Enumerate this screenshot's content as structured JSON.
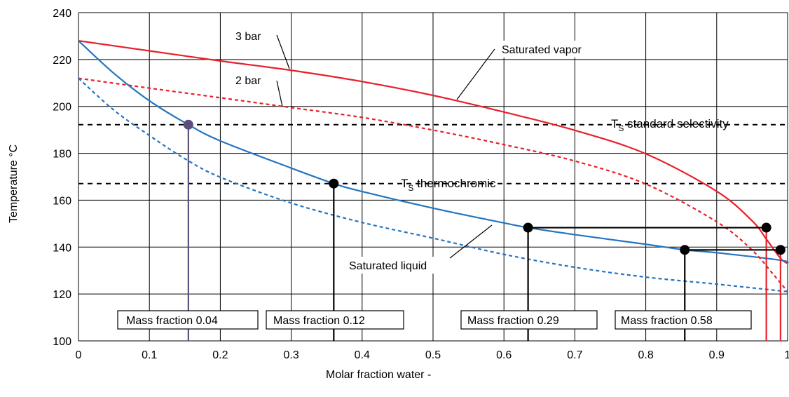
{
  "chart_data": {
    "type": "line",
    "title": "",
    "xlabel": "Molar fraction water   -",
    "ylabel": "Temperature   °C",
    "xlim": [
      0,
      1
    ],
    "ylim": [
      100,
      240
    ],
    "xticks": [
      "0",
      "0.1",
      "0.2",
      "0.3",
      "0.4",
      "0.5",
      "0.6",
      "0.7",
      "0.8",
      "0.9",
      "1"
    ],
    "yticks": [
      "100",
      "120",
      "140",
      "160",
      "180",
      "200",
      "220",
      "240"
    ],
    "grid": true,
    "series": [
      {
        "name": "3 bar saturated vapor",
        "color": "#e8202a",
        "dash": "solid",
        "x": [
          0,
          0.1,
          0.2,
          0.3,
          0.4,
          0.5,
          0.6,
          0.7,
          0.8,
          0.9,
          0.95,
          0.97,
          0.99,
          1.0
        ],
        "y": [
          228,
          223.7,
          219.4,
          215.4,
          210.6,
          204.7,
          197.6,
          189.8,
          179.8,
          163.8,
          151.2,
          143.4,
          135.2,
          133
        ]
      },
      {
        "name": "3 bar saturated liquid",
        "color": "#2475c0",
        "dash": "solid",
        "x": [
          0,
          0.05,
          0.1,
          0.155,
          0.2,
          0.3,
          0.36,
          0.4,
          0.5,
          0.6,
          0.634,
          0.7,
          0.8,
          0.855,
          0.9,
          0.99,
          1.0
        ],
        "y": [
          228,
          214.1,
          202.4,
          192.2,
          185.3,
          173.7,
          167.1,
          163.7,
          156.6,
          150.3,
          148.3,
          145.3,
          141.2,
          138.8,
          137.6,
          134.4,
          133
        ]
      },
      {
        "name": "2 bar saturated vapor",
        "color": "#e8202a",
        "dash": "dashed",
        "x": [
          0,
          0.1,
          0.2,
          0.3,
          0.4,
          0.5,
          0.6,
          0.7,
          0.8,
          0.9,
          0.95,
          0.98,
          1.0
        ],
        "y": [
          212,
          207.8,
          203.7,
          199.5,
          195.3,
          189.9,
          183.7,
          176.7,
          166.9,
          150.8,
          138.7,
          128.3,
          121
        ]
      },
      {
        "name": "2 bar saturated liquid",
        "color": "#2475c0",
        "dash": "dashed",
        "x": [
          0,
          0.05,
          0.1,
          0.15,
          0.2,
          0.3,
          0.4,
          0.5,
          0.6,
          0.7,
          0.8,
          0.9,
          1.0
        ],
        "y": [
          212,
          198.4,
          187.6,
          177.7,
          169.8,
          158.8,
          150.5,
          143.8,
          136.9,
          131.4,
          127.2,
          124.2,
          121
        ]
      }
    ],
    "reference_lines": [
      {
        "label_main": "T",
        "label_sub": "S",
        "label_rest": " standard selectivity",
        "y": 192.2
      },
      {
        "label_main": "T",
        "label_sub": "S",
        "label_rest": " thermochromic",
        "y": 167.1
      }
    ],
    "markers": [
      {
        "x": 0.155,
        "y": 192.2,
        "color": "#5b4e7d"
      },
      {
        "x": 0.36,
        "y": 167.1,
        "color": "#000000"
      },
      {
        "x": 0.634,
        "y": 148.3,
        "color": "#000000"
      },
      {
        "x": 0.97,
        "y": 148.3,
        "color": "#000000"
      },
      {
        "x": 0.855,
        "y": 138.8,
        "color": "#000000"
      },
      {
        "x": 0.99,
        "y": 138.8,
        "color": "#000000"
      }
    ],
    "tie_lines": [
      {
        "x1": 0.634,
        "x2": 0.97,
        "y": 148.3
      },
      {
        "x1": 0.855,
        "x2": 0.99,
        "y": 138.8
      }
    ],
    "drop_lines": [
      {
        "x": 0.155,
        "y": 192.2,
        "color": "#5b4e7d"
      },
      {
        "x": 0.36,
        "y": 167.1,
        "color": "#000000"
      },
      {
        "x": 0.634,
        "y": 148.3,
        "color": "#000000"
      },
      {
        "x": 0.855,
        "y": 138.8,
        "color": "#000000"
      },
      {
        "x": 0.97,
        "y": 148.3,
        "color": "#e8202a"
      },
      {
        "x": 0.99,
        "y": 138.8,
        "color": "#e8202a"
      }
    ],
    "mass_fraction_labels": [
      "Mass fraction 0.04",
      "Mass fraction 0.12",
      "Mass fraction 0.29",
      "Mass fraction 0.58"
    ],
    "annotations": [
      "3 bar",
      "2 bar",
      "Saturated vapor",
      "Saturated liquid"
    ]
  }
}
